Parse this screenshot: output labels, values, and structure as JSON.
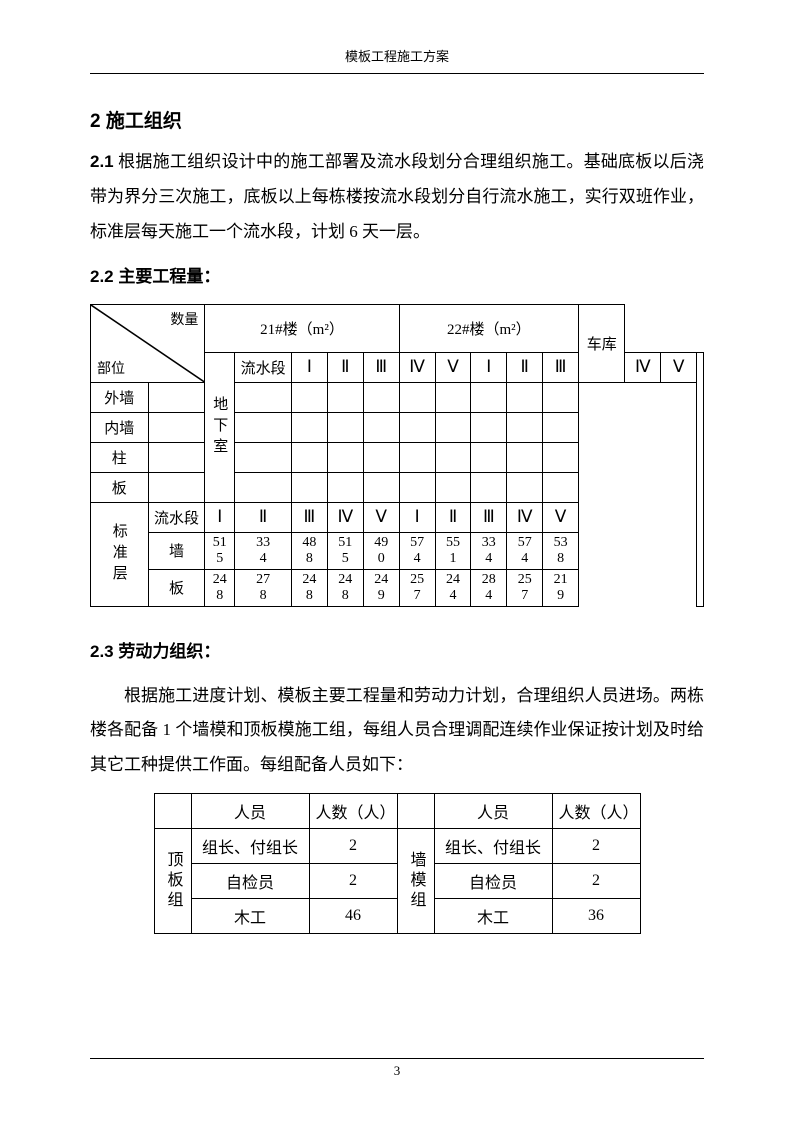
{
  "page_header": "模板工程施工方案",
  "page_number": "3",
  "h2": "2 施工组织",
  "s21_label": "2.1",
  "s21_text": "根据施工组织设计中的施工部署及流水段划分合理组织施工。基础底板以后浇带为界分三次施工，底板以上每栋楼按流水段划分自行流水施工，实行双班作业，标准层每天施工一个流水段，计划 6 天一层。",
  "s22_title": "2.2 主要工程量：",
  "t1": {
    "diag_top": "数量",
    "diag_bot": "部位",
    "col_b21": "21#楼（m²）",
    "col_b22": "22#楼（m²）",
    "col_car": "车库",
    "romans": [
      "Ⅰ",
      "Ⅱ",
      "Ⅲ",
      "Ⅳ",
      "Ⅴ",
      "Ⅰ",
      "Ⅱ",
      "Ⅲ",
      "Ⅳ",
      "Ⅴ"
    ],
    "sec1": "地下室",
    "sec1_rows": [
      "流水段",
      "外墙",
      "内墙",
      "柱",
      "板"
    ],
    "sec2": "标准层",
    "sec2_rows": [
      "流水段",
      "墙",
      "板"
    ],
    "wall_row": [
      "515",
      "334",
      "488",
      "515",
      "490",
      "574",
      "551",
      "334",
      "574",
      "538"
    ],
    "slab_row": [
      "248",
      "278",
      "248",
      "248",
      "249",
      "257",
      "244",
      "284",
      "257",
      "219"
    ]
  },
  "s23_title": "2.3 劳动力组织：",
  "s23_para": "根据施工进度计划、模板主要工程量和劳动力计划，合理组织人员进场。两栋楼各配备 1 个墙模和顶板模施工组，每组人员合理调配连续作业保证按计划及时给其它工种提供工作面。每组配备人员如下：",
  "t2": {
    "h_role": "人员",
    "h_count": "人数（人）",
    "group1": "顶板组",
    "group2": "墙模组",
    "r1": "组长、付组长",
    "r1n1": "2",
    "r1n2": "2",
    "r1b": "组长、付组长",
    "r2": "自检员",
    "r2n1": "2",
    "r2n2": "2",
    "r3": "木工",
    "r3n1": "46",
    "r3n2": "36"
  }
}
